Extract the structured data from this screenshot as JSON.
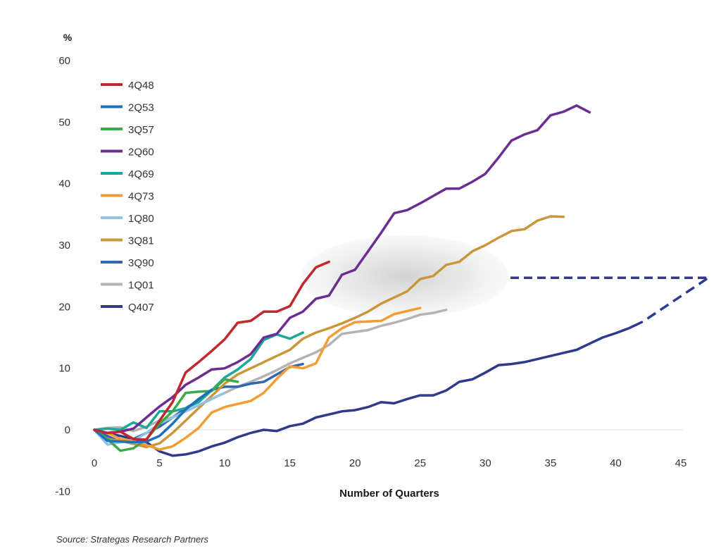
{
  "chart_data": {
    "type": "line",
    "ylabel": "%",
    "xlabel": "Number of Quarters",
    "ylim": [
      -10,
      60
    ],
    "xlim": [
      0,
      45
    ],
    "yticks": [
      -10,
      0,
      10,
      20,
      30,
      40,
      50,
      60
    ],
    "xticks": [
      0,
      5,
      10,
      15,
      20,
      25,
      30,
      35,
      40,
      45
    ],
    "grid": false,
    "legend_position": "top-left",
    "source": "Source: Strategas Research Partners",
    "series": [
      {
        "name": "4Q48",
        "color": "#c1272d",
        "x": [
          0,
          1,
          2,
          3,
          4,
          5,
          6,
          7,
          8,
          9,
          10,
          11,
          12,
          13,
          14,
          15,
          16,
          17,
          18
        ],
        "y": [
          0,
          -0.5,
          -0.3,
          -1.5,
          -1.6,
          1.5,
          4.5,
          9.3,
          11,
          12.8,
          14.7,
          17.4,
          17.7,
          19.2,
          19.2,
          20.1,
          23.7,
          26.4,
          27.3
        ]
      },
      {
        "name": "2Q53",
        "color": "#1f6fbf",
        "x": [
          0,
          1,
          2,
          3,
          4,
          5,
          6,
          7,
          8,
          9
        ],
        "y": [
          0,
          -1.8,
          -1.9,
          -2,
          -1.9,
          -1,
          1,
          3.3,
          5,
          6.5
        ]
      },
      {
        "name": "3Q57",
        "color": "#3daa47",
        "x": [
          0,
          1,
          2,
          3,
          4,
          5,
          6,
          7,
          8,
          9,
          10,
          11
        ],
        "y": [
          0,
          -1.5,
          -3.4,
          -3,
          -1.5,
          1,
          3,
          6,
          6.2,
          6.3,
          8.2,
          7.8
        ]
      },
      {
        "name": "2Q60",
        "color": "#6b2d91",
        "x": [
          0,
          1,
          2,
          3,
          4,
          5,
          6,
          7,
          8,
          9,
          10,
          11,
          12,
          13,
          14,
          15,
          16,
          17,
          18,
          19,
          20,
          21,
          22,
          23,
          24,
          25,
          26,
          27,
          28,
          29,
          30,
          31,
          32,
          33,
          34,
          35,
          36,
          37,
          38
        ],
        "y": [
          0,
          -0.5,
          -0.3,
          0.2,
          2,
          3.8,
          5.3,
          7.3,
          8.5,
          9.8,
          10,
          11,
          12.3,
          15,
          15.6,
          18.2,
          19.2,
          21.3,
          21.8,
          25.2,
          26,
          29,
          32,
          35.2,
          35.7,
          36.8,
          38,
          39.2,
          39.2,
          40.3,
          41.6,
          44.2,
          47,
          48,
          48.7,
          51.1,
          51.7,
          52.7,
          51.6
        ]
      },
      {
        "name": "4Q69",
        "color": "#1aa89a",
        "x": [
          0,
          1,
          2,
          3,
          4,
          5,
          6,
          7,
          8,
          9,
          10,
          11,
          12,
          13,
          14,
          15,
          16
        ],
        "y": [
          0,
          0.2,
          0,
          1.2,
          0.3,
          3,
          3,
          3.5,
          4.5,
          6.4,
          8.5,
          9.8,
          11.5,
          14.6,
          15.5,
          14.8,
          15.8
        ]
      },
      {
        "name": "4Q73",
        "color": "#f39c34",
        "x": [
          0,
          1,
          2,
          3,
          4,
          5,
          6,
          7,
          8,
          9,
          10,
          11,
          12,
          13,
          14,
          15,
          16,
          17,
          18,
          19,
          20,
          21,
          22,
          23,
          24,
          25
        ],
        "y": [
          0,
          -0.5,
          -1.5,
          -1.8,
          -2.5,
          -3.2,
          -2.7,
          -1.3,
          0.3,
          2.8,
          3.7,
          4.2,
          4.7,
          6,
          8.3,
          10.3,
          10,
          10.8,
          15,
          16.5,
          17.5,
          17.6,
          17.7,
          18.8,
          19.3,
          19.8
        ]
      },
      {
        "name": "1Q80",
        "color": "#92c2e3",
        "x": [
          0,
          1,
          2,
          3,
          4,
          5,
          6,
          7,
          8,
          9,
          10
        ],
        "y": [
          0,
          -2.4,
          -2,
          -1.8,
          -0.5,
          1,
          2,
          3,
          4,
          5,
          6
        ]
      },
      {
        "name": "3Q81",
        "color": "#c9963a",
        "x": [
          0,
          1,
          2,
          3,
          4,
          5,
          6,
          7,
          8,
          9,
          10,
          11,
          12,
          13,
          14,
          15,
          16,
          17,
          18,
          19,
          20,
          21,
          22,
          23,
          24,
          25,
          26,
          27,
          28,
          29,
          30,
          31,
          32,
          33,
          34,
          35,
          36
        ],
        "y": [
          0,
          -1.5,
          -1.8,
          -2.3,
          -2.8,
          -2.2,
          -0.5,
          1.5,
          3.5,
          5.5,
          7.5,
          9,
          10,
          11,
          12,
          13,
          14.8,
          15.8,
          16.5,
          17.3,
          18.2,
          19.2,
          20.5,
          21.5,
          22.5,
          24.5,
          25,
          26.8,
          27.3,
          29,
          30,
          31.2,
          32.3,
          32.6,
          34,
          34.7,
          34.6
        ]
      },
      {
        "name": "3Q90",
        "color": "#3366b0",
        "x": [
          0,
          1,
          2,
          3,
          4,
          5,
          6,
          7,
          8,
          9,
          10,
          11,
          12,
          13,
          14,
          15,
          16
        ],
        "y": [
          0,
          -1,
          -2,
          -1.5,
          -0.5,
          0.5,
          2,
          3.5,
          4.8,
          6.5,
          7,
          7,
          7.5,
          7.8,
          9,
          10.2,
          10.7
        ]
      },
      {
        "name": "1Q01",
        "color": "#b3b3b3",
        "x": [
          0,
          1,
          2,
          3,
          4,
          5,
          6,
          7,
          8,
          9,
          10,
          11,
          12,
          13,
          14,
          15,
          16,
          17,
          18,
          19,
          20,
          21,
          22,
          23,
          24,
          25,
          26,
          27
        ],
        "y": [
          0,
          0.3,
          0.4,
          -0.2,
          0.5,
          1.5,
          2,
          3,
          4,
          5,
          6,
          7,
          7.8,
          8.7,
          9.7,
          10.8,
          11.7,
          12.6,
          13.8,
          15.6,
          15.9,
          16.2,
          16.9,
          17.4,
          18,
          18.7,
          19,
          19.5
        ]
      },
      {
        "name": "Q407",
        "color": "#2e3a8c",
        "dashed_projection": true,
        "x": [
          0,
          1,
          2,
          3,
          4,
          5,
          6,
          7,
          8,
          9,
          10,
          11,
          12,
          13,
          14,
          15,
          16,
          17,
          18,
          19,
          20,
          21,
          22,
          23,
          24,
          25,
          26,
          27,
          28,
          29,
          30,
          31,
          32,
          33,
          34,
          35,
          36,
          37,
          38,
          39,
          40,
          41,
          42
        ],
        "y": [
          0,
          -0.5,
          -1,
          -1.5,
          -2,
          -3.5,
          -4.2,
          -4,
          -3.5,
          -2.7,
          -2.1,
          -1.2,
          -0.5,
          0,
          -0.2,
          0.6,
          1,
          2,
          2.5,
          3,
          3.2,
          3.7,
          4.5,
          4.3,
          5,
          5.6,
          5.6,
          6.4,
          7.8,
          8.2,
          9.3,
          10.5,
          10.7,
          11,
          11.5,
          12,
          12.5,
          13,
          14,
          15,
          15.7,
          16.5,
          17.5
        ]
      }
    ]
  },
  "source_text": "Source: Strategas Research Partners"
}
